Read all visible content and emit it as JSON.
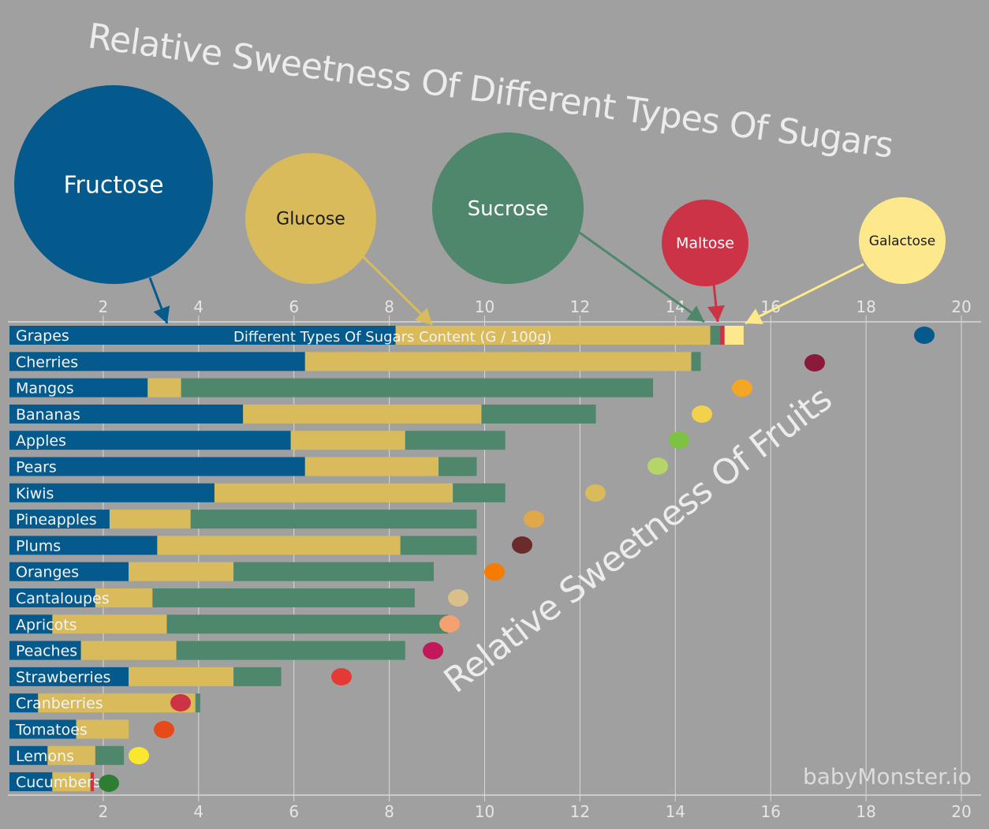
{
  "chart_data": {
    "type": "bar",
    "stacked": true,
    "orientation": "horizontal",
    "title": "Relative Sweetness Of Different Types Of Sugars",
    "subtitle": "Relative Sweetness Of Fruits",
    "xlabel": "Different Types Of Sugars Content (G / 100g)",
    "xlim": [
      0,
      20.5
    ],
    "xticks": [
      2,
      4,
      6,
      8,
      10,
      12,
      14,
      16,
      18,
      20
    ],
    "grid": true,
    "legend_placement": "top",
    "categories": [
      "Grapes",
      "Cherries",
      "Mangos",
      "Bananas",
      "Apples",
      "Pears",
      "Kiwis",
      "Pineapples",
      "Plums",
      "Oranges",
      "Cantaloupes",
      "Apricots",
      "Peaches",
      "Strawberries",
      "Cranberries",
      "Tomatoes",
      "Lemons",
      "Cucumbers"
    ],
    "series": [
      {
        "name": "Fructose",
        "color": "#045a8d",
        "values": [
          8.1,
          6.2,
          2.9,
          4.9,
          5.9,
          6.2,
          4.3,
          2.1,
          3.1,
          2.5,
          1.8,
          0.9,
          1.5,
          2.5,
          0.6,
          1.4,
          0.8,
          0.9
        ]
      },
      {
        "name": "Glucose",
        "color": "#d9bb5b",
        "values": [
          6.6,
          8.1,
          0.7,
          5.0,
          2.4,
          2.8,
          5.0,
          1.7,
          5.1,
          2.2,
          1.2,
          2.4,
          2.0,
          2.2,
          3.3,
          1.1,
          1.0,
          0.8
        ]
      },
      {
        "name": "Sucrose",
        "color": "#4e876c",
        "values": [
          0.2,
          0.2,
          9.9,
          2.4,
          2.1,
          0.8,
          1.1,
          6.0,
          1.6,
          4.2,
          5.5,
          5.9,
          4.8,
          1.0,
          0.1,
          0,
          0.6,
          0
        ]
      },
      {
        "name": "Maltose",
        "color": "#cc3347",
        "values": [
          0.1,
          0,
          0,
          0,
          0,
          0,
          0,
          0,
          0,
          0,
          0,
          0,
          0,
          0,
          0,
          0,
          0,
          0.07
        ]
      },
      {
        "name": "Galactose",
        "color": "#fde98c",
        "values": [
          0.4,
          0,
          0,
          0,
          0,
          0,
          0,
          0,
          0,
          0,
          0,
          0,
          0,
          0,
          0,
          0,
          0,
          0
        ]
      }
    ],
    "fruit_icon_colors": [
      "#045a8d",
      "#8b1a3a",
      "#f5a623",
      "#f2d24a",
      "#7dc242",
      "#b5d56a",
      "#d9bb5b",
      "#e0a84a",
      "#6b2b2b",
      "#f57c00",
      "#d9c08a",
      "#f4a070",
      "#c2185b",
      "#e53935",
      "#cc3347",
      "#e64a19",
      "#f9e82d",
      "#2e7d32"
    ]
  },
  "watermark": "babyMonster.io"
}
